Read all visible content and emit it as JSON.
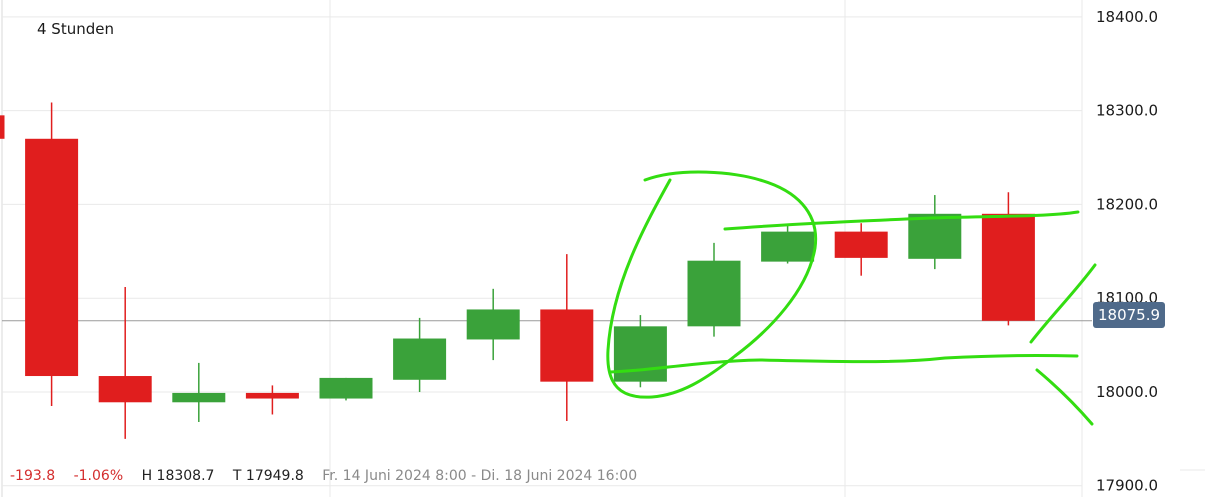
{
  "interval_label": "4 Stunden",
  "stats": {
    "change": "-193.8",
    "change_pct": "-1.06%",
    "high": "H 18308.7",
    "low": "T 17949.8",
    "range": "Fr. 14 Juni 2024 8:00 - Di. 18 Juni 2024 16:00"
  },
  "last_price_label": "18075.9",
  "colors": {
    "up": "#3aa23a",
    "down": "#e01e1e",
    "grid": "#e9e9e9",
    "price_line": "#9a9a9a",
    "badge": "#4f6a8a",
    "annotation": "#33dd11"
  },
  "chart_data": {
    "type": "candlestick",
    "title": "",
    "xlabel": "",
    "ylabel": "",
    "y_ticks": [
      17900,
      18000,
      18100,
      18200,
      18300,
      18400
    ],
    "y_tick_labels": [
      "17900.0",
      "18000.0",
      "18100.0",
      "18200.0",
      "18300.0",
      "18400.0"
    ],
    "ylim": [
      17888,
      18418
    ],
    "last_price": 18075.9,
    "grid": true,
    "candles": [
      {
        "open": 18295,
        "high": 18295,
        "low": 18270,
        "close": 18270
      },
      {
        "open": 18270,
        "high": 18308.7,
        "low": 17985,
        "close": 18017
      },
      {
        "open": 18017,
        "high": 18112,
        "low": 17950,
        "close": 17989
      },
      {
        "open": 17989,
        "high": 18031,
        "low": 17968,
        "close": 17999
      },
      {
        "open": 17999,
        "high": 18007,
        "low": 17976,
        "close": 17993
      },
      {
        "open": 17993,
        "high": 18015,
        "low": 17991,
        "close": 18015
      },
      {
        "open": 18013,
        "high": 18079,
        "low": 18000,
        "close": 18057
      },
      {
        "open": 18056,
        "high": 18110,
        "low": 18034,
        "close": 18088
      },
      {
        "open": 18088,
        "high": 18147,
        "low": 17969,
        "close": 18011
      },
      {
        "open": 18011,
        "high": 18082,
        "low": 18005,
        "close": 18070
      },
      {
        "open": 18070,
        "high": 18159,
        "low": 18059,
        "close": 18140
      },
      {
        "open": 18139,
        "high": 18179,
        "low": 18137,
        "close": 18171
      },
      {
        "open": 18171,
        "high": 18180,
        "low": 18124,
        "close": 18143
      },
      {
        "open": 18142,
        "high": 18210,
        "low": 18131,
        "close": 18190
      },
      {
        "open": 18190,
        "high": 18213,
        "low": 18071,
        "close": 18075.9
      }
    ]
  }
}
